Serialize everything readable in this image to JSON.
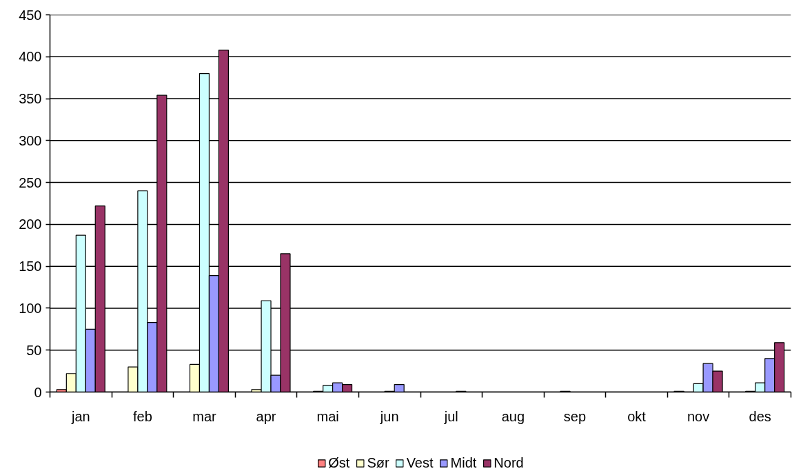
{
  "chart_data": {
    "type": "bar",
    "categories": [
      "jan",
      "feb",
      "mar",
      "apr",
      "mai",
      "jun",
      "jul",
      "aug",
      "sep",
      "okt",
      "nov",
      "des"
    ],
    "series": [
      {
        "name": "Øst",
        "color": "#ff8080",
        "values": [
          3,
          null,
          null,
          null,
          null,
          null,
          null,
          null,
          null,
          null,
          1,
          null
        ]
      },
      {
        "name": "Sør",
        "color": "#ffffcc",
        "values": [
          22,
          30,
          33,
          3,
          1,
          null,
          null,
          null,
          1,
          null,
          null,
          1
        ]
      },
      {
        "name": "Vest",
        "color": "#ccffff",
        "values": [
          187,
          240,
          380,
          109,
          8,
          1,
          null,
          null,
          null,
          null,
          10,
          11
        ]
      },
      {
        "name": "Midt",
        "color": "#9999ff",
        "values": [
          75,
          83,
          139,
          20,
          11,
          9,
          1,
          null,
          null,
          null,
          34,
          40
        ]
      },
      {
        "name": "Nord",
        "color": "#993366",
        "values": [
          222,
          354,
          408,
          165,
          9,
          null,
          null,
          null,
          null,
          null,
          25,
          59
        ]
      }
    ],
    "ylim": [
      0,
      450
    ],
    "yticks": [
      0,
      50,
      100,
      150,
      200,
      250,
      300,
      350,
      400,
      450
    ],
    "grid": "y",
    "legend": "bottom"
  }
}
